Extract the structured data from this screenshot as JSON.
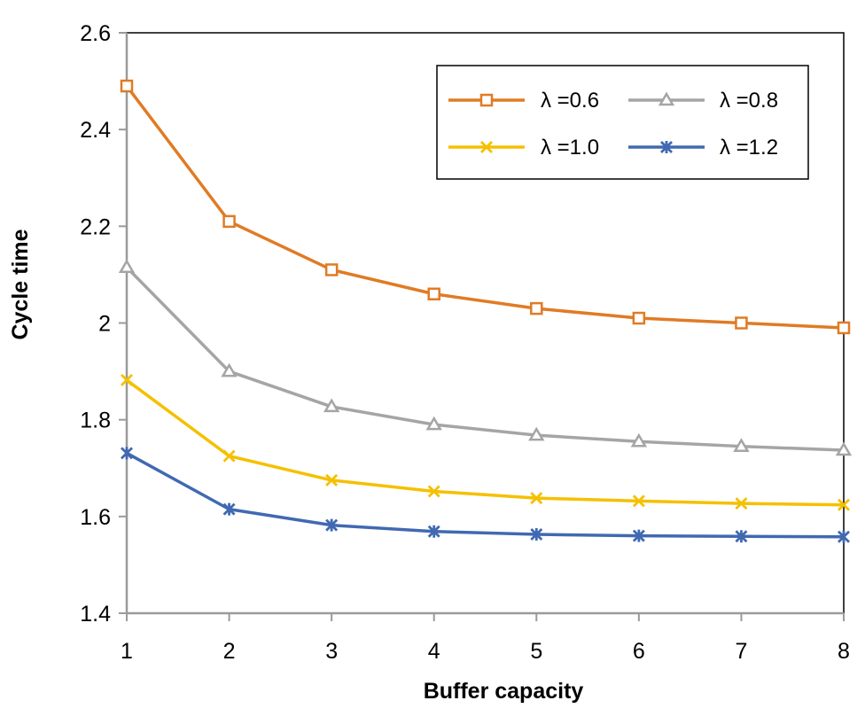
{
  "chart_data": {
    "type": "line",
    "title": "",
    "xlabel": "Buffer capacity",
    "ylabel": "Cycle time",
    "x": [
      1,
      2,
      3,
      4,
      5,
      6,
      7,
      8
    ],
    "xlim": [
      1,
      8
    ],
    "ylim": [
      1.4,
      2.6
    ],
    "xticks": [
      "1",
      "2",
      "3",
      "4",
      "5",
      "6",
      "7",
      "8"
    ],
    "yticks": [
      "1.4",
      "1.6",
      "1.8",
      "2",
      "2.2",
      "2.4",
      "2.6"
    ],
    "grid": false,
    "legend_position": "top-right",
    "series": [
      {
        "name": "λ =0.6",
        "color": "#E07B24",
        "marker": "square",
        "values": [
          2.49,
          2.21,
          2.11,
          2.06,
          2.03,
          2.01,
          2.0,
          1.99
        ]
      },
      {
        "name": "λ =0.8",
        "color": "#A5A5A5",
        "marker": "triangle",
        "values": [
          2.115,
          1.9,
          1.827,
          1.79,
          1.768,
          1.755,
          1.745,
          1.737
        ]
      },
      {
        "name": "λ =1.0",
        "color": "#F5C000",
        "marker": "x",
        "values": [
          1.882,
          1.725,
          1.675,
          1.652,
          1.638,
          1.632,
          1.627,
          1.624
        ]
      },
      {
        "name": "λ =1.2",
        "color": "#4169B2",
        "marker": "star",
        "values": [
          1.731,
          1.615,
          1.582,
          1.569,
          1.563,
          1.56,
          1.559,
          1.558
        ]
      }
    ]
  }
}
